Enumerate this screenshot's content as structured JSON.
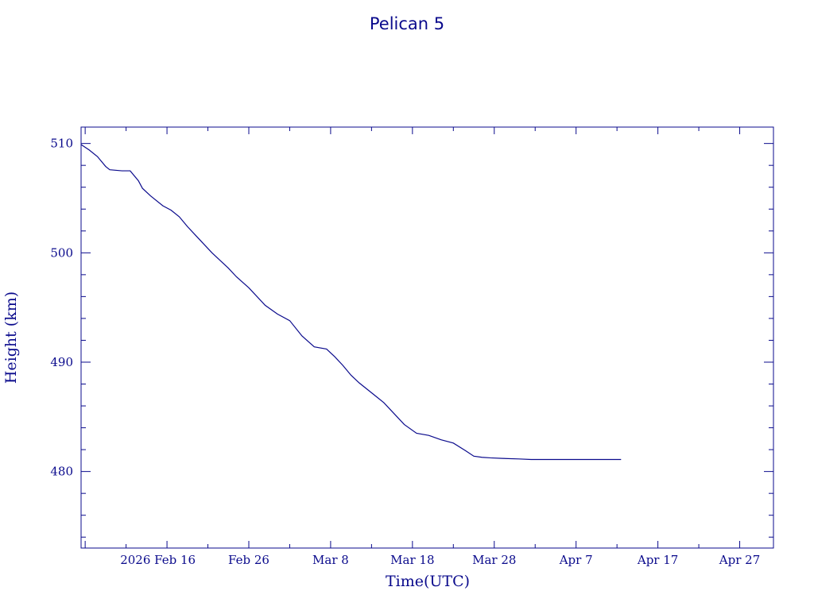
{
  "chart_data": {
    "type": "line",
    "title": "Pelican 5",
    "xlabel": "Time(UTC)",
    "ylabel": "Height (km)",
    "x_type": "date",
    "xlim": [
      "2026-02-05T12:00",
      "2026-05-01T03:00"
    ],
    "ylim": [
      473,
      511.5
    ],
    "x_major_ticks": [
      "2026-02-16",
      "2026-02-26",
      "2026-03-08",
      "2026-03-18",
      "2026-03-28",
      "2026-04-07",
      "2026-04-17",
      "2026-04-27"
    ],
    "x_tick_labels": [
      "2026 Feb 16",
      "Feb 26",
      "Mar  8",
      "Mar 18",
      "Mar 28",
      "Apr  7",
      "Apr 17",
      "Apr 27"
    ],
    "y_major_ticks": [
      480,
      490,
      500,
      510
    ],
    "y_tick_labels": [
      "480",
      "490",
      "500",
      "510"
    ],
    "y_minor_step": 2,
    "x_minor_days": 5,
    "grid": false,
    "color": "#0a0a8c",
    "series": [
      {
        "x": [
          "2026-02-05T12:00",
          "2026-02-06T12:00",
          "2026-02-07T12:00",
          "2026-02-08T12:00",
          "2026-02-09T00:00",
          "2026-02-10T12:00",
          "2026-02-11T12:00",
          "2026-02-12T12:00",
          "2026-02-13T00:00",
          "2026-02-14T00:00",
          "2026-02-15T12:00",
          "2026-02-16T12:00",
          "2026-02-17T12:00",
          "2026-02-18T12:00",
          "2026-02-19T12:00",
          "2026-02-20T12:00",
          "2026-02-21T12:00",
          "2026-02-22T12:00",
          "2026-02-23T12:00",
          "2026-02-24T12:00",
          "2026-02-26T00:00",
          "2026-02-28T00:00",
          "2026-03-01T12:00",
          "2026-03-03T00:00",
          "2026-03-04T12:00",
          "2026-03-06T00:00",
          "2026-03-07T12:00",
          "2026-03-08T12:00",
          "2026-03-09T12:00",
          "2026-03-10T12:00",
          "2026-03-11T12:00",
          "2026-03-13T12:00",
          "2026-03-14T12:00",
          "2026-03-15T12:00",
          "2026-03-17T00:00",
          "2026-03-18T12:00",
          "2026-03-20T00:00",
          "2026-03-21T12:00",
          "2026-03-23T00:00",
          "2026-03-24T12:00",
          "2026-03-25T12:00",
          "2026-03-26T12:00",
          "2026-03-27T12:00",
          "2026-03-29T00:00",
          "2026-03-31T00:00",
          "2026-04-01T12:00",
          "2026-04-02T12:00",
          "2026-04-03T12:00",
          "2026-04-05T00:00",
          "2026-04-07T00:00",
          "2026-04-09T00:00",
          "2026-04-11T00:00",
          "2026-04-12T12:00"
        ],
        "y": [
          509.9,
          509.4,
          508.8,
          507.9,
          507.6,
          507.5,
          507.5,
          506.6,
          505.9,
          505.2,
          504.3,
          503.9,
          503.3,
          502.4,
          501.6,
          500.8,
          500.0,
          499.3,
          498.6,
          497.8,
          496.8,
          495.2,
          494.4,
          493.8,
          492.4,
          491.4,
          491.2,
          490.5,
          489.7,
          488.8,
          488.1,
          486.9,
          486.3,
          485.5,
          484.3,
          483.5,
          483.3,
          482.9,
          482.6,
          481.9,
          481.4,
          481.3,
          481.25,
          481.2,
          481.15,
          481.1,
          481.1,
          481.1,
          481.1,
          481.1,
          481.1,
          481.1,
          481.1
        ]
      }
    ]
  }
}
